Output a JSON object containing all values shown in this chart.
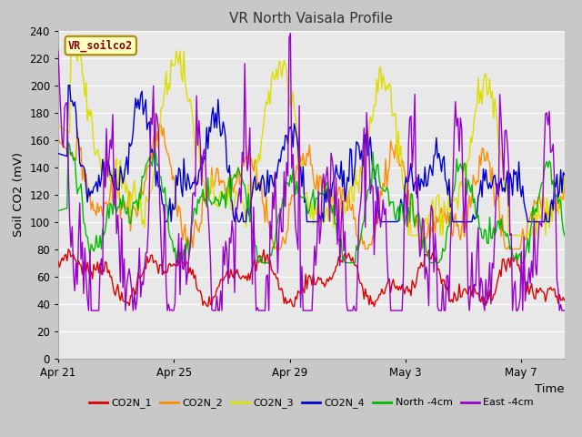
{
  "title": "VR North Vaisala Profile",
  "ylabel": "Soil CO2 (mV)",
  "xlabel": "Time",
  "annotation": "VR_soilco2",
  "ylim": [
    0,
    240
  ],
  "fig_facecolor": "#c8c8c8",
  "ax_facecolor": "#e8e8e8",
  "legend_entries": [
    "CO2N_1",
    "CO2N_2",
    "CO2N_3",
    "CO2N_4",
    "North -4cm",
    "East -4cm"
  ],
  "line_colors": [
    "#dd0000",
    "#ff8c00",
    "#dddd00",
    "#0000cc",
    "#00bb00",
    "#9900cc"
  ],
  "xtick_labels": [
    "Apr 21",
    "Apr 25",
    "Apr 29",
    "May 3",
    "May 7"
  ],
  "xtick_positions": [
    0,
    4,
    8,
    12,
    16
  ],
  "num_points": 400,
  "xlim": [
    0,
    17.5
  ]
}
